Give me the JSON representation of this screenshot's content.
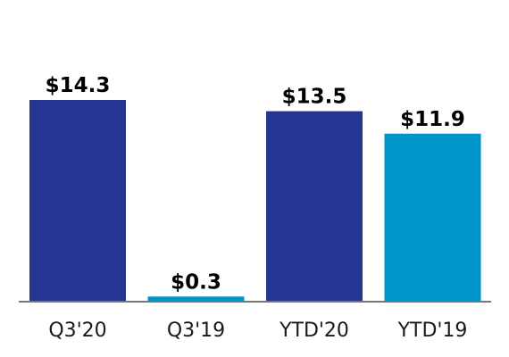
{
  "chart_data": {
    "type": "bar",
    "title": "",
    "xlabel": "",
    "ylabel": "",
    "categories": [
      "Q3'20",
      "Q3'19",
      "YTD'20",
      "YTD'19"
    ],
    "values": [
      14.3,
      0.3,
      13.5,
      11.9
    ],
    "value_labels": [
      "$14.3",
      "$0.3",
      "$13.5",
      "$11.9"
    ],
    "bar_colors": [
      "#263591",
      "#0095c8",
      "#263591",
      "#0095c8"
    ],
    "ylim": [
      0,
      14.3
    ],
    "grid": false,
    "legend": "none",
    "axis_color": "#777777"
  }
}
